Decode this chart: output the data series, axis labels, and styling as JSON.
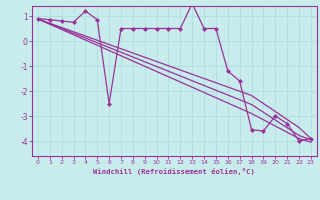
{
  "xlabel": "Windchill (Refroidissement éolien,°C)",
  "background_color": "#c8ecec",
  "grid_color": "#b0dede",
  "line_color": "#993399",
  "xlim": [
    -0.5,
    23.5
  ],
  "ylim": [
    -4.6,
    1.4
  ],
  "x_data": [
    0,
    1,
    2,
    3,
    4,
    5,
    6,
    7,
    8,
    9,
    10,
    11,
    12,
    13,
    14,
    15,
    16,
    17,
    18,
    19,
    20,
    21,
    22,
    23
  ],
  "y_main": [
    0.9,
    0.85,
    0.8,
    0.75,
    1.2,
    0.85,
    -2.5,
    0.5,
    0.5,
    0.5,
    0.5,
    0.5,
    0.5,
    1.5,
    0.5,
    0.5,
    -1.2,
    -1.6,
    -3.55,
    -3.6,
    -3.0,
    -3.3,
    -4.0,
    -3.9
  ],
  "y_trend1": [
    0.88,
    0.71,
    0.54,
    0.37,
    0.2,
    0.03,
    -0.14,
    -0.31,
    -0.48,
    -0.65,
    -0.82,
    -0.99,
    -1.16,
    -1.33,
    -1.5,
    -1.67,
    -1.84,
    -2.01,
    -2.18,
    -2.5,
    -2.82,
    -3.14,
    -3.46,
    -3.9
  ],
  "y_trend2": [
    0.88,
    0.69,
    0.5,
    0.31,
    0.12,
    -0.07,
    -0.26,
    -0.45,
    -0.64,
    -0.83,
    -1.02,
    -1.21,
    -1.4,
    -1.59,
    -1.78,
    -1.97,
    -2.16,
    -2.35,
    -2.54,
    -2.85,
    -3.16,
    -3.47,
    -3.78,
    -3.95
  ],
  "y_trend3": [
    0.88,
    0.67,
    0.46,
    0.25,
    0.04,
    -0.17,
    -0.38,
    -0.59,
    -0.8,
    -1.01,
    -1.22,
    -1.43,
    -1.64,
    -1.85,
    -2.06,
    -2.27,
    -2.48,
    -2.69,
    -2.9,
    -3.15,
    -3.4,
    -3.65,
    -3.9,
    -4.05
  ],
  "yticks": [
    1,
    0,
    -1,
    -2,
    -3,
    -4
  ],
  "xticks": [
    0,
    1,
    2,
    3,
    4,
    5,
    6,
    7,
    8,
    9,
    10,
    11,
    12,
    13,
    14,
    15,
    16,
    17,
    18,
    19,
    20,
    21,
    22,
    23
  ]
}
